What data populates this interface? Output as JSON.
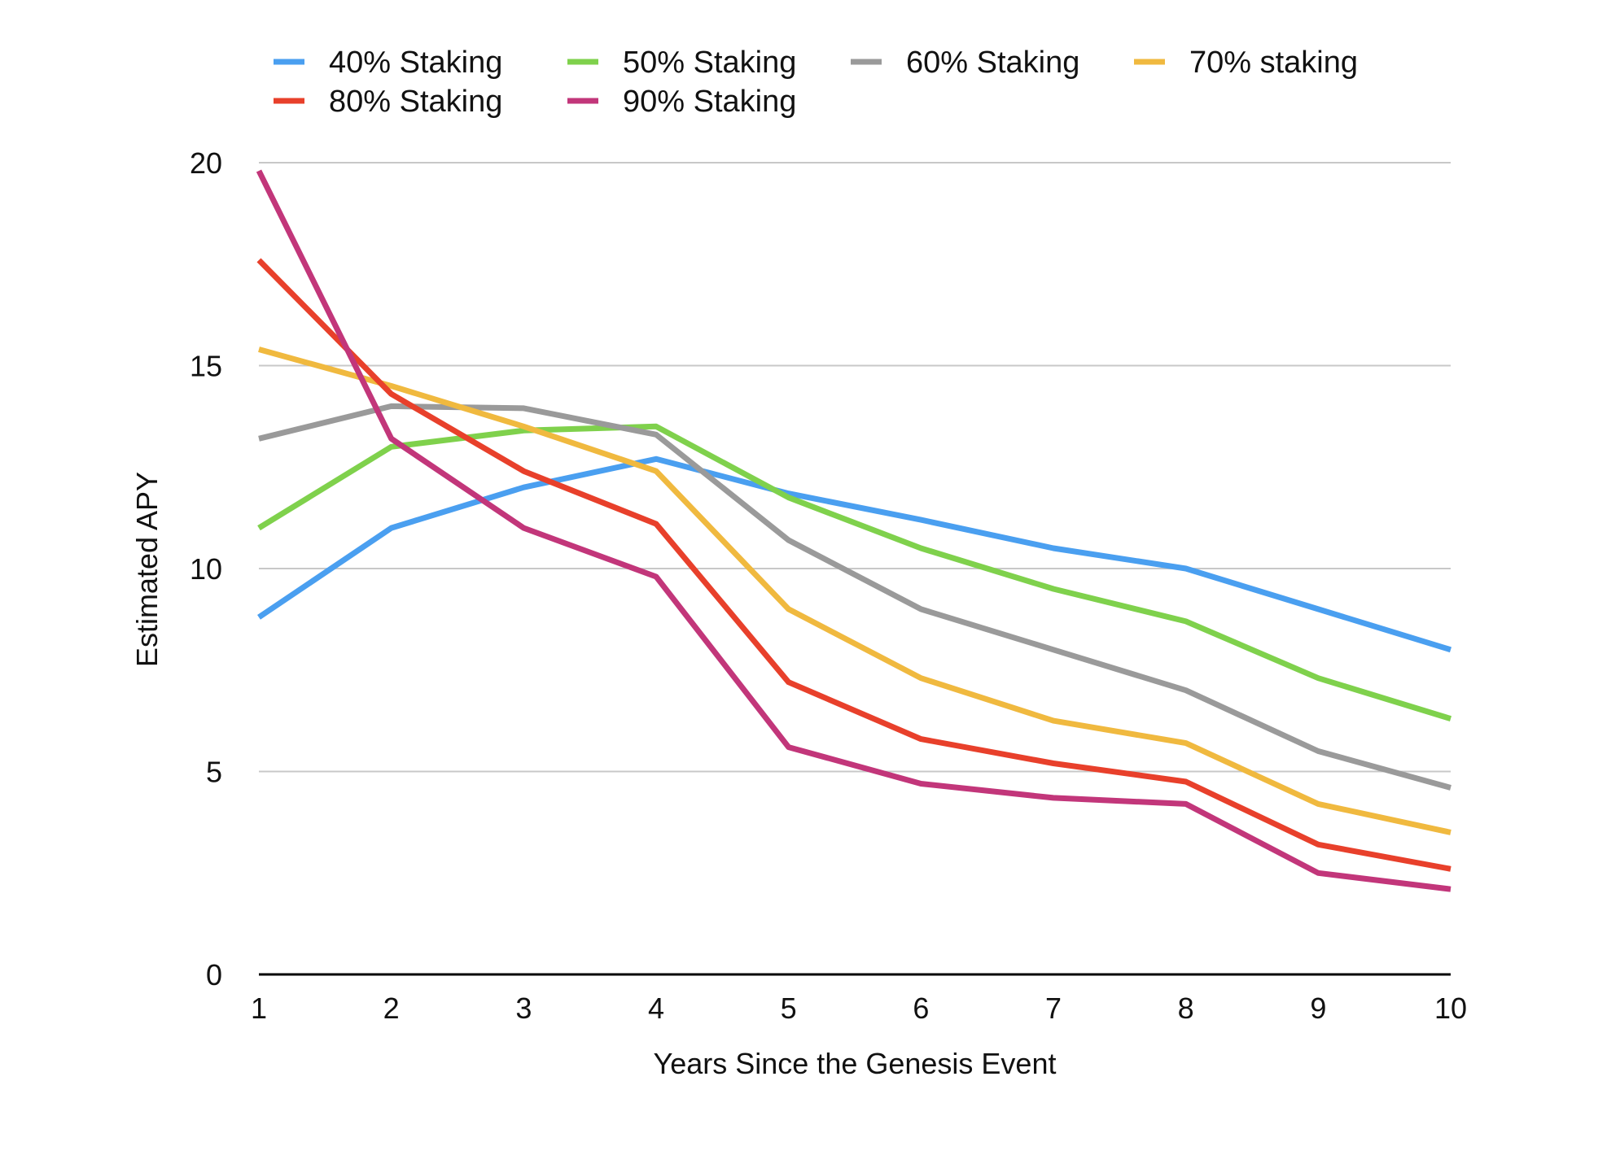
{
  "chart_data": {
    "type": "line",
    "title": "",
    "xlabel": "Years Since the Genesis Event",
    "ylabel": "Estimated APY",
    "x": [
      1,
      2,
      3,
      4,
      5,
      6,
      7,
      8,
      9,
      10
    ],
    "x_ticks": [
      "1",
      "2",
      "3",
      "4",
      "5",
      "6",
      "7",
      "8",
      "9",
      "10"
    ],
    "y_ticks": [
      "0",
      "5",
      "10",
      "15",
      "20"
    ],
    "xlim": [
      1,
      10
    ],
    "ylim": [
      0,
      20
    ],
    "grid": "horizontal",
    "legend_position": "top",
    "series": [
      {
        "name": "40% Staking",
        "color": "#4a9ff0",
        "values": [
          8.8,
          11.0,
          12.0,
          12.7,
          11.85,
          11.2,
          10.5,
          10.0,
          9.0,
          8.0
        ]
      },
      {
        "name": "50% Staking",
        "color": "#7fd14c",
        "values": [
          11.0,
          13.0,
          13.4,
          13.5,
          11.75,
          10.5,
          9.5,
          8.7,
          7.3,
          6.3
        ]
      },
      {
        "name": "60% Staking",
        "color": "#9a9a9a",
        "values": [
          13.2,
          14.0,
          13.95,
          13.3,
          10.7,
          9.0,
          8.0,
          7.0,
          5.5,
          4.6
        ]
      },
      {
        "name": "70% staking",
        "color": "#f0b93f",
        "values": [
          15.4,
          14.5,
          13.5,
          12.4,
          9.0,
          7.3,
          6.25,
          5.7,
          4.2,
          3.5
        ]
      },
      {
        "name": "80% Staking",
        "color": "#e8402b",
        "values": [
          17.6,
          14.3,
          12.4,
          11.1,
          7.2,
          5.8,
          5.2,
          4.75,
          3.2,
          2.6
        ]
      },
      {
        "name": "90% Staking",
        "color": "#c2367a",
        "values": [
          19.8,
          13.2,
          11.0,
          9.8,
          5.6,
          4.7,
          4.35,
          4.2,
          2.5,
          2.1
        ]
      }
    ]
  }
}
